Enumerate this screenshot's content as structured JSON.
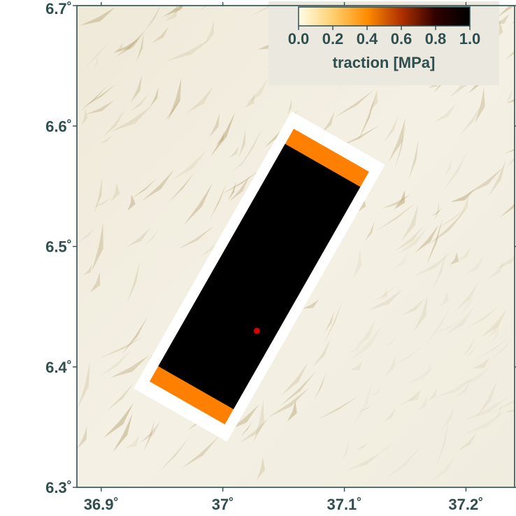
{
  "map": {
    "lon_range": [
      36.88,
      37.24
    ],
    "lat_range": [
      6.3,
      6.7
    ],
    "x_ticks": [
      {
        "value": 36.9,
        "label": "36.9˚"
      },
      {
        "value": 37.0,
        "label": "37˚"
      },
      {
        "value": 37.1,
        "label": "37.1˚"
      },
      {
        "value": 37.2,
        "label": "37.2˚"
      }
    ],
    "y_ticks": [
      {
        "value": 6.3,
        "label": "6.3˚"
      },
      {
        "value": 6.4,
        "label": "6.4˚"
      },
      {
        "value": 6.5,
        "label": "6.5˚"
      },
      {
        "value": 6.6,
        "label": "6.6˚"
      },
      {
        "value": 6.7,
        "label": "6.7˚"
      }
    ],
    "colors": {
      "terrain_light": "#f1ede0",
      "terrain_shadow": "#a0864a",
      "frame": "#2f4f4f",
      "fault_halo": "#ffffff",
      "fault_core": "#000000",
      "fault_edge": "#ff8000",
      "epicenter": "#d40000",
      "legend_box": "#ebe8e0"
    }
  },
  "fault": {
    "top_end": [
      37.095,
      6.59
    ],
    "bottom_end": [
      36.965,
      6.36
    ],
    "epicenter": {
      "lon": 37.028,
      "lat": 6.43
    }
  },
  "colorbar": {
    "ticks": [
      "0.0",
      "0.2",
      "0.4",
      "0.6",
      "0.8",
      "1.0"
    ],
    "label": "traction [MPa]",
    "stops": [
      "#fffde8",
      "#ffd070",
      "#ff8c00",
      "#b03000",
      "#300000",
      "#000000"
    ]
  }
}
